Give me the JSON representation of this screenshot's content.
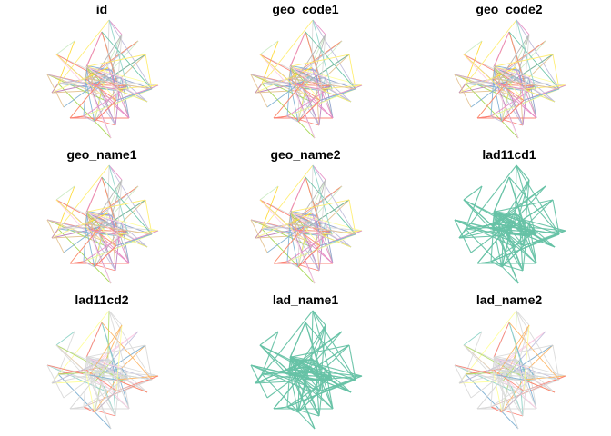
{
  "figure": {
    "palette": [
      "#66C2A5",
      "#FC8D62",
      "#8DA0CB",
      "#E78AC3",
      "#A6D854",
      "#FFD92F",
      "#E5C494",
      "#B3B3B3",
      "#FFFF99",
      "#FB8072",
      "#80B1D3",
      "#BEBADA",
      "#FCCDE5",
      "#D9D9D9",
      "#BC80BD",
      "#CCEBC5",
      "#FFED6F",
      "#8DD3C7"
    ]
  },
  "chart_data": {
    "type": "line",
    "description_type": "multi-panel flow map (origin-destination desire lines), one panel per attribute",
    "panels": [
      {
        "title": "id",
        "fill": "many"
      },
      {
        "title": "geo_code1",
        "fill": "many"
      },
      {
        "title": "geo_code2",
        "fill": "many"
      },
      {
        "title": "geo_name1",
        "fill": "many"
      },
      {
        "title": "geo_name2",
        "fill": "many"
      },
      {
        "title": "lad11cd1",
        "fill": "single",
        "color": "#66C2A5"
      },
      {
        "title": "lad11cd2",
        "fill": "few"
      },
      {
        "title": "lad_name1",
        "fill": "single",
        "color": "#66C2A5"
      },
      {
        "title": "lad_name2",
        "fill": "few"
      }
    ]
  }
}
